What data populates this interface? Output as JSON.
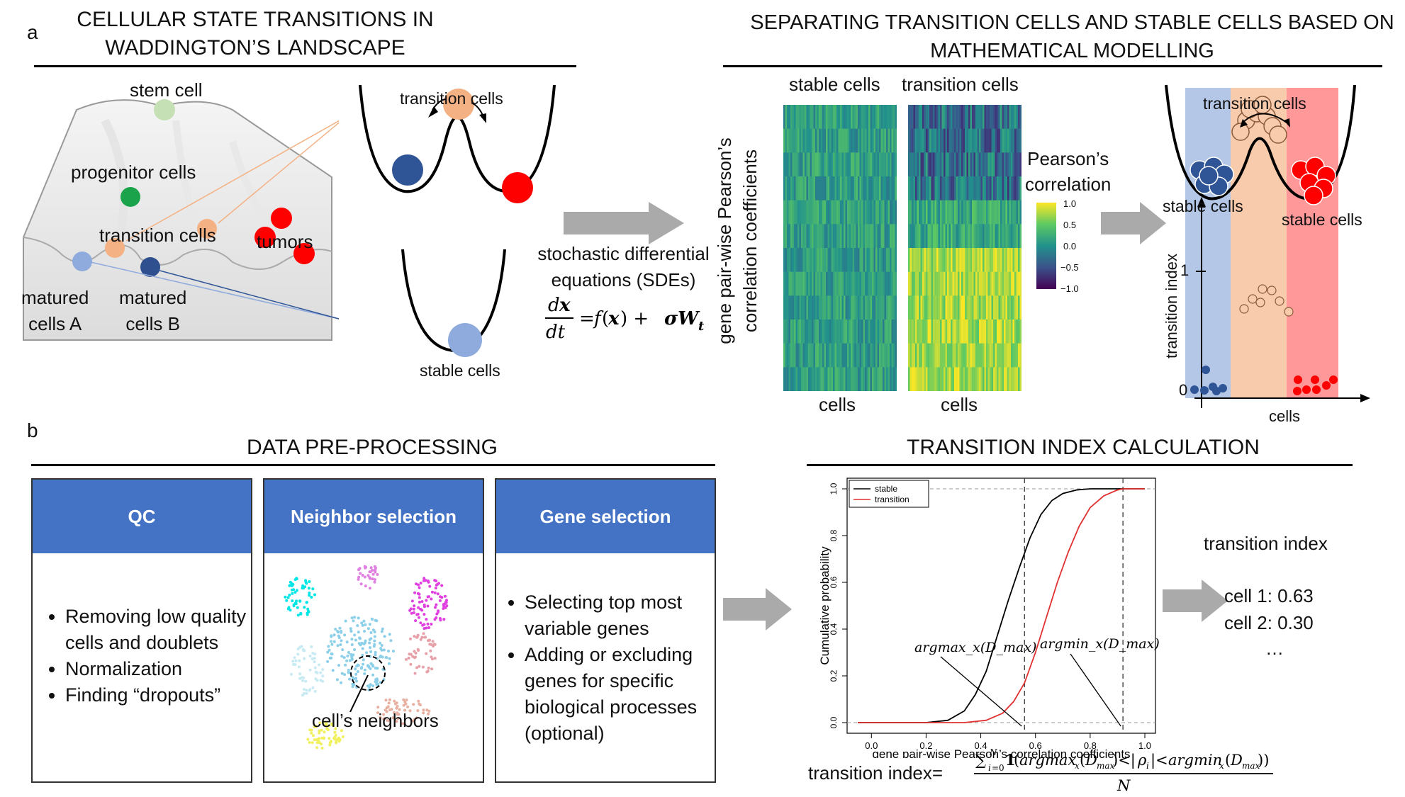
{
  "panel_a": {
    "label": "a",
    "left_title_line1": "CELLULAR STATE TRANSITIONS IN",
    "left_title_line2": "WADDINGTON’S LANDSCAPE",
    "right_title_line1": "SEPARATING TRANSITION CELLS AND STABLE CELLS BASED ON",
    "right_title_line2": "MATHEMATICAL MODELLING",
    "landscape": {
      "stem_cell": "stem cell",
      "progenitor_cells": "progenitor cells",
      "transition_cells": "transition cells",
      "tumors": "tumors",
      "matured_a_line1": "matured",
      "matured_a_line2": "cells A",
      "matured_b_line1": "matured",
      "matured_b_line2": "cells B"
    },
    "wells": {
      "transition_cells": "transition cells",
      "stable_cells": "stable cells"
    },
    "sde": {
      "line1": "stochastic differential",
      "line2": "equations (SDEs)"
    },
    "heatmap": {
      "stable_label": "stable cells",
      "transition_label": "transition cells",
      "x_label_left": "cells",
      "x_label_right": "cells",
      "y_label_line1": "gene pair-wise Pearson’s",
      "y_label_line2": "correlation coefficients",
      "legend_title_line1": "Pearson’s",
      "legend_title_line2": "correlation",
      "legend_ticks": [
        "1.0",
        "0.5",
        "0.0",
        "−0.5",
        "−1.0"
      ]
    },
    "schematic": {
      "transition_cells": "transition cells",
      "stable_cells_left": "stable cells",
      "stable_cells_right": "stable cells",
      "y_axis": "transition index",
      "x_axis": "cells",
      "y_one": "1",
      "y_zero": "0"
    }
  },
  "panel_b": {
    "label": "b",
    "left_title": "DATA PRE-PROCESSING",
    "right_title": "TRANSITION INDEX CALCULATION",
    "qc": {
      "title": "QC",
      "items": [
        "Removing low quality cells and doublets",
        "Normalization",
        "Finding “dropouts”"
      ]
    },
    "neighbor": {
      "title": "Neighbor selection",
      "annotation": "cell’s neighbors"
    },
    "gene": {
      "title": "Gene selection",
      "items": [
        "Selecting top most variable genes",
        "Adding or excluding genes for specific biological processes (optional)"
      ]
    },
    "result": {
      "title": "transition index",
      "cell1": "cell 1: 0.63",
      "cell2": "cell 2: 0.30",
      "more": "…"
    },
    "formula_prefix": "transition index="
  },
  "chart_data": {
    "type": "line",
    "xlabel": "gene pair-wise Pearson’s correlation coefficients",
    "ylabel": "Cumulative probability",
    "xlim": [
      -0.05,
      1.0
    ],
    "ylim": [
      0,
      1.0
    ],
    "x_ticks": [
      "0.0",
      "0.2",
      "0.4",
      "0.6",
      "0.8",
      "1.0"
    ],
    "y_ticks": [
      "0.0",
      "0.2",
      "0.4",
      "0.6",
      "0.8",
      "1.0"
    ],
    "legend_position": "top-left",
    "series": [
      {
        "name": "stable",
        "color": "#000000",
        "x": [
          0.2,
          0.28,
          0.34,
          0.38,
          0.42,
          0.46,
          0.5,
          0.54,
          0.58,
          0.62,
          0.66,
          0.7,
          0.75,
          0.8,
          1.0
        ],
        "y": [
          0.0,
          0.01,
          0.05,
          0.12,
          0.22,
          0.37,
          0.52,
          0.66,
          0.79,
          0.89,
          0.95,
          0.98,
          0.995,
          1.0,
          1.0
        ]
      },
      {
        "name": "transition",
        "color": "#e03030",
        "x": [
          0.34,
          0.42,
          0.48,
          0.52,
          0.56,
          0.6,
          0.64,
          0.68,
          0.72,
          0.76,
          0.8,
          0.85,
          0.9,
          0.92,
          1.0
        ],
        "y": [
          0.0,
          0.01,
          0.04,
          0.09,
          0.17,
          0.3,
          0.45,
          0.6,
          0.73,
          0.84,
          0.92,
          0.97,
          0.995,
          1.0,
          1.0
        ]
      }
    ],
    "vlines": [
      0.56,
      0.92
    ],
    "hlines": [
      0.0,
      1.0
    ],
    "annotations": [
      "argmax_x(D_max)",
      "argmin_x(D_max)"
    ]
  }
}
